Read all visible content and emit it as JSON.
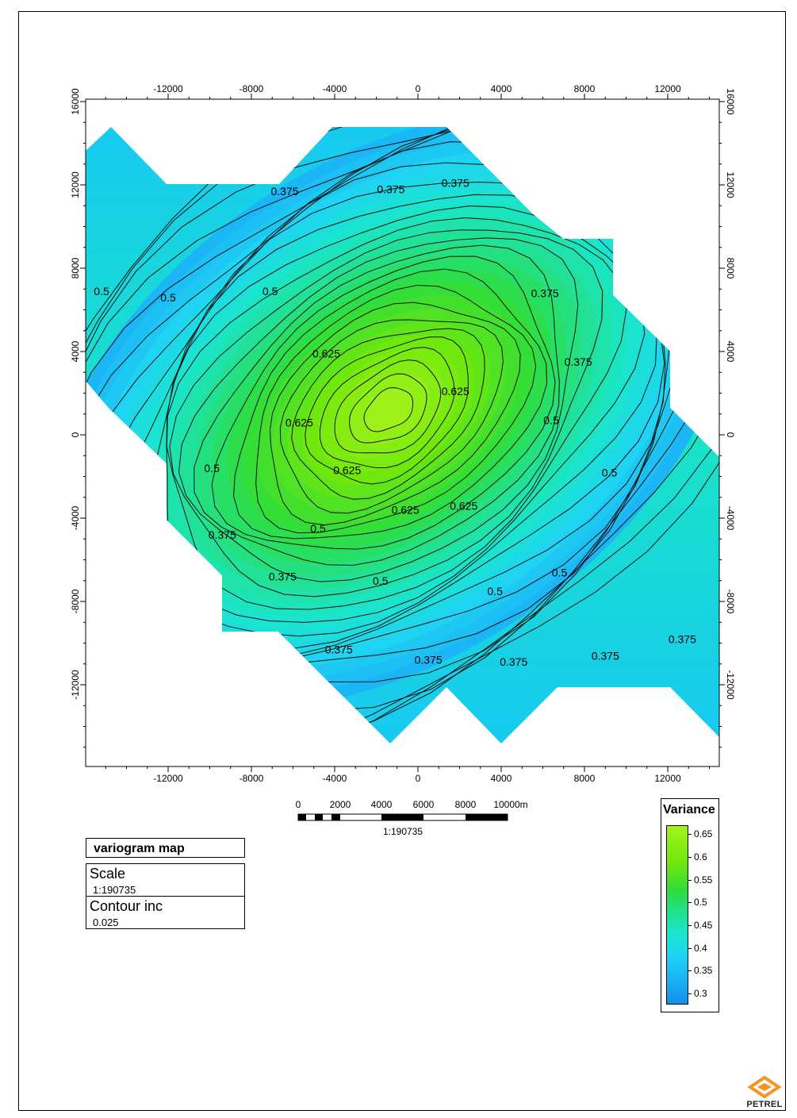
{
  "chart_data": {
    "type": "heatmap",
    "title": "",
    "xlabel": "",
    "ylabel": "",
    "xlim": [
      -16000,
      14600
    ],
    "ylim": [
      -15800,
      16000
    ],
    "x_ticks": [
      -12000,
      -8000,
      -4000,
      0,
      4000,
      8000,
      12000
    ],
    "y_ticks": [
      16000,
      12000,
      8000,
      4000,
      0,
      -4000,
      -8000,
      -12000
    ],
    "x_tick_labels": [
      "-12000",
      "-8000",
      "-4000",
      "0",
      "4000",
      "8000",
      "12000"
    ],
    "y_tick_labels": [
      "16000",
      "12000",
      "8000",
      "4000",
      "0",
      "-4000",
      "-8000",
      "-12000"
    ],
    "colorbar": {
      "label": "Variance",
      "min": 0.275,
      "max": 0.67,
      "ticks": [
        0.65,
        0.6,
        0.55,
        0.5,
        0.45,
        0.4,
        0.35,
        0.3
      ],
      "tick_labels": [
        "0.65",
        "0.6",
        "0.55",
        "0.5",
        "0.45",
        "0.4",
        "0.35",
        "0.3"
      ],
      "colors": [
        "#1090ee",
        "#1ab6f5",
        "#1fd5f2",
        "#19e6cc",
        "#22e08a",
        "#2fdd3a",
        "#72e80c",
        "#a4f31a"
      ]
    },
    "contour_interval": 0.025,
    "peak": {
      "x": -1400,
      "y": 1200,
      "value": 0.66
    },
    "contour_labels": [
      {
        "text": "0.375",
        "x": -6400,
        "y": 11700
      },
      {
        "text": "0.375",
        "x": -1300,
        "y": 11800
      },
      {
        "text": "0.375",
        "x": 1800,
        "y": 12100
      },
      {
        "text": "0.375",
        "x": 6100,
        "y": 6800
      },
      {
        "text": "0.375",
        "x": 7700,
        "y": 3500
      },
      {
        "text": "0.5",
        "x": -15200,
        "y": 6900
      },
      {
        "text": "0.5",
        "x": -12000,
        "y": 6600
      },
      {
        "text": "0.5",
        "x": -7100,
        "y": 6900
      },
      {
        "text": "0.625",
        "x": -4400,
        "y": 3900
      },
      {
        "text": "0.625",
        "x": 1800,
        "y": 2100
      },
      {
        "text": "0.625",
        "x": -5700,
        "y": 600
      },
      {
        "text": "0.625",
        "x": -3400,
        "y": -1700
      },
      {
        "text": "0.625",
        "x": -600,
        "y": -3600
      },
      {
        "text": "0.625",
        "x": 2200,
        "y": -3400
      },
      {
        "text": "0.5",
        "x": -9900,
        "y": -1600
      },
      {
        "text": "0.5",
        "x": -4800,
        "y": -4500
      },
      {
        "text": "0.5",
        "x": 6400,
        "y": 700
      },
      {
        "text": "0.5",
        "x": 9200,
        "y": -1800
      },
      {
        "text": "0.5",
        "x": -1800,
        "y": -7000
      },
      {
        "text": "0.5",
        "x": 3700,
        "y": -7500
      },
      {
        "text": "0.5",
        "x": 6800,
        "y": -6600
      },
      {
        "text": "0.375",
        "x": -9400,
        "y": -4800
      },
      {
        "text": "0.375",
        "x": -6500,
        "y": -6800
      },
      {
        "text": "0.375",
        "x": -3800,
        "y": -10300
      },
      {
        "text": "0.375",
        "x": 500,
        "y": -10800
      },
      {
        "text": "0.375",
        "x": 4600,
        "y": -10900
      },
      {
        "text": "0.375",
        "x": 9000,
        "y": -10600
      },
      {
        "text": "0.375",
        "x": 12700,
        "y": -9800
      }
    ]
  },
  "scale_bar": {
    "labels": [
      "0",
      "2000",
      "4000",
      "6000",
      "8000",
      "10000m"
    ],
    "ratio": "1:190735"
  },
  "info": {
    "title": "variogram map",
    "scale_heading": "Scale",
    "scale_value": "1:190735",
    "contour_heading": "Contour inc",
    "contour_value": "0.025"
  },
  "logo": {
    "text": "PETREL",
    "color": "#f7931e"
  }
}
